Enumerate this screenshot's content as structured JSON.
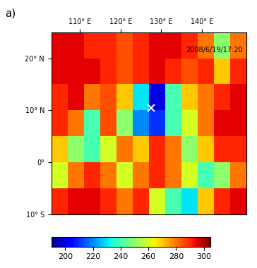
{
  "chart_data": {
    "type": "heatmap",
    "panel_label": "a)",
    "annotation": "2008/6/19/17:20",
    "xlim": [
      103,
      151
    ],
    "ylim": [
      -10,
      25
    ],
    "xticks": [
      {
        "value": 110,
        "label": "110° E"
      },
      {
        "value": 120,
        "label": "120° E"
      },
      {
        "value": 130,
        "label": "130° E"
      },
      {
        "value": 140,
        "label": "140° E"
      }
    ],
    "yticks": [
      {
        "value": 20,
        "label": "20° N"
      },
      {
        "value": 10,
        "label": "10° N"
      },
      {
        "value": 0,
        "label": "0°"
      },
      {
        "value": -10,
        "label": "10° S"
      }
    ],
    "x_edges": [
      103,
      107,
      111,
      115,
      119,
      123,
      127,
      131,
      135,
      139,
      143,
      147,
      151
    ],
    "y_edges": [
      25,
      20,
      15,
      10,
      5,
      0,
      -5,
      -10
    ],
    "cells": [
      [
        295,
        295,
        290,
        290,
        285,
        290,
        295,
        295,
        290,
        280,
        250,
        280
      ],
      [
        295,
        295,
        295,
        290,
        285,
        290,
        295,
        290,
        285,
        290,
        270,
        290
      ],
      [
        290,
        295,
        280,
        285,
        270,
        230,
        200,
        240,
        270,
        280,
        290,
        295
      ],
      [
        290,
        280,
        240,
        285,
        250,
        220,
        210,
        240,
        260,
        280,
        295,
        295
      ],
      [
        270,
        250,
        240,
        260,
        280,
        270,
        290,
        280,
        250,
        270,
        290,
        290
      ],
      [
        260,
        280,
        290,
        280,
        260,
        280,
        290,
        280,
        260,
        240,
        250,
        280
      ],
      [
        290,
        295,
        295,
        290,
        280,
        290,
        260,
        240,
        230,
        270,
        290,
        295
      ]
    ],
    "colorbar_range": [
      190,
      305
    ],
    "colorbar_ticks": [
      200,
      220,
      240,
      260,
      280,
      300
    ],
    "points": [
      {
        "x": 127.5,
        "y": 10.5,
        "marker": "x",
        "color": "#ffffff"
      }
    ]
  }
}
